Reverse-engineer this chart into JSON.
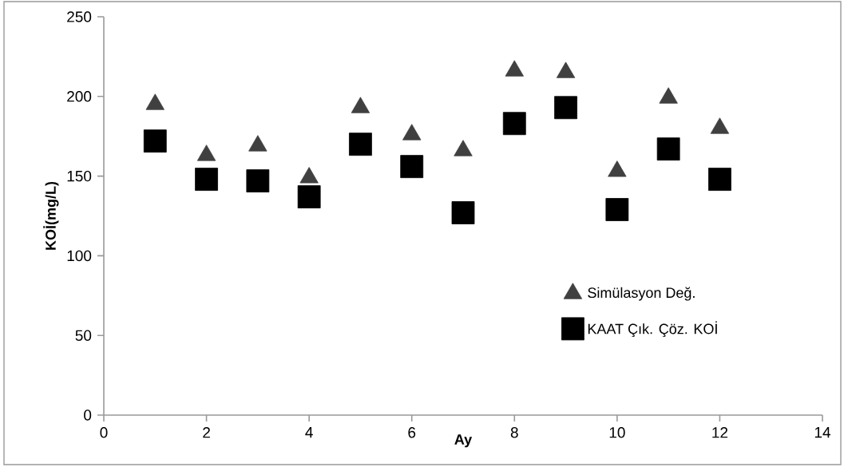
{
  "chart_data": {
    "type": "scatter",
    "xlabel": "Ay",
    "ylabel": "KOİ(mg/L)",
    "x": [
      1,
      2,
      3,
      4,
      5,
      6,
      7,
      8,
      9,
      10,
      11,
      12
    ],
    "series": [
      {
        "name": "Simülasyon Değ.",
        "color": "#404040",
        "marker": "triangle",
        "values": [
          195,
          163,
          169,
          149,
          193,
          176,
          166,
          216,
          215,
          153,
          199,
          180
        ]
      },
      {
        "name": "KAAT Çık. Çöz. KOİ",
        "color": "#000000",
        "marker": "square",
        "values": [
          172,
          148,
          147,
          137,
          170,
          156,
          127,
          183,
          193,
          129,
          167,
          148
        ]
      }
    ],
    "xlim": [
      0,
      14
    ],
    "xticks": [
      0,
      2,
      4,
      6,
      8,
      10,
      12,
      14
    ],
    "ylim": [
      0,
      250
    ],
    "yticks": [
      0,
      50,
      100,
      150,
      200,
      250
    ],
    "legend": "bottom right"
  }
}
